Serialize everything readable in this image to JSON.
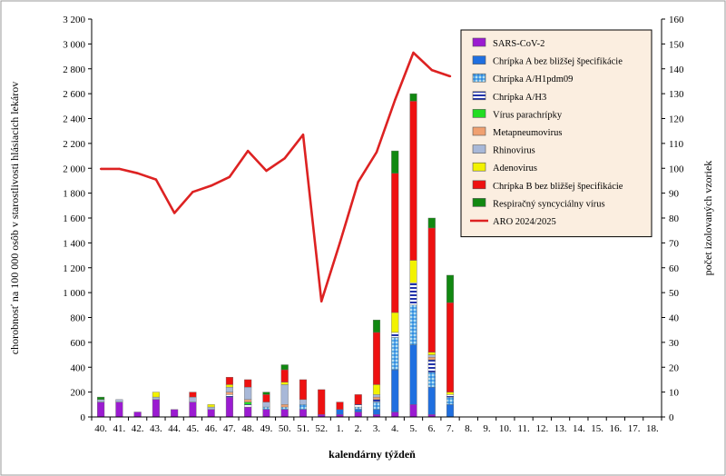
{
  "chart_data": {
    "type": "bar",
    "subtype": "stacked bar with line on secondary axis",
    "title": "",
    "xlabel": "kalendárny týždeň",
    "ylabel": "chorobnosť na 100 000 osôb v starostlivosti hlásiacich lekárov",
    "y2label": "počet izolovaných vzoriek",
    "ylim": [
      0,
      3200
    ],
    "y2lim": [
      0,
      160
    ],
    "yticks": [
      "0",
      "200",
      "400",
      "600",
      "800",
      "1 000",
      "1 200",
      "1 400",
      "1 600",
      "1 800",
      "2 000",
      "2 200",
      "2 400",
      "2 600",
      "2 800",
      "3 000",
      "3 200"
    ],
    "y2ticks": [
      "0",
      "10",
      "20",
      "30",
      "40",
      "50",
      "60",
      "70",
      "80",
      "90",
      "100",
      "110",
      "120",
      "130",
      "140",
      "150",
      "160"
    ],
    "categories": [
      "40.",
      "41.",
      "42.",
      "43.",
      "44.",
      "45.",
      "46.",
      "47.",
      "48.",
      "49.",
      "50.",
      "51.",
      "52.",
      "1.",
      "2.",
      "3.",
      "4.",
      "5.",
      "6.",
      "7.",
      "8.",
      "9.",
      "10.",
      "11.",
      "12.",
      "13.",
      "14.",
      "15.",
      "16.",
      "17.",
      "18."
    ],
    "legend_position": "top-right",
    "grid": false,
    "series": [
      {
        "name": "SARS-CoV-2",
        "axis": "y2",
        "color": "#9b1bd1",
        "pattern": "solid",
        "values": [
          6,
          6,
          2,
          7,
          3,
          6,
          3,
          8,
          4,
          3,
          3,
          3,
          1,
          1,
          2,
          1,
          2,
          5,
          1,
          0,
          0,
          0,
          0,
          0,
          0,
          0,
          0,
          0,
          0,
          0,
          0
        ]
      },
      {
        "name": "Chrípka A bez bližšej špecifikácie",
        "axis": "y2",
        "color": "#1f6fe0",
        "pattern": "solid",
        "values": [
          0,
          0,
          0,
          0,
          0,
          0,
          0,
          0,
          0,
          0,
          0,
          0,
          0,
          2,
          1,
          2,
          17,
          24,
          11,
          5,
          0,
          0,
          0,
          0,
          0,
          0,
          0,
          0,
          0,
          0,
          0
        ]
      },
      {
        "name": "Chrípka A/H1pdm09",
        "axis": "y2",
        "color": "#6fb8e8",
        "pattern": "dots",
        "values": [
          0,
          0,
          0,
          0,
          0,
          0,
          0,
          0,
          0,
          1,
          1,
          2,
          0,
          0,
          1,
          3,
          13,
          16,
          6,
          3,
          0,
          0,
          0,
          0,
          0,
          0,
          0,
          0,
          0,
          0,
          0
        ]
      },
      {
        "name": "Chrípka A/H3",
        "axis": "y2",
        "color": "#2233aa",
        "pattern": "stripes",
        "values": [
          0,
          0,
          0,
          0,
          0,
          0,
          0,
          1,
          1,
          0,
          0,
          0,
          0,
          0,
          1,
          1,
          2,
          9,
          5,
          1,
          0,
          0,
          0,
          0,
          0,
          0,
          0,
          0,
          0,
          0,
          0
        ]
      },
      {
        "name": "Vírus parachrípky",
        "axis": "y2",
        "color": "#22dd22",
        "pattern": "solid",
        "values": [
          0,
          0,
          0,
          0,
          0,
          0,
          0,
          0,
          1,
          0,
          0,
          0,
          0,
          0,
          0,
          0,
          0,
          0,
          0,
          0,
          0,
          0,
          0,
          0,
          0,
          0,
          0,
          0,
          0,
          0,
          0
        ]
      },
      {
        "name": "Metapneumovirus",
        "axis": "y2",
        "color": "#f0a070",
        "pattern": "solid",
        "values": [
          0,
          0,
          0,
          0,
          0,
          0,
          0,
          1,
          1,
          0,
          1,
          0,
          0,
          0,
          0,
          1,
          0,
          0,
          1,
          0,
          0,
          0,
          0,
          0,
          0,
          0,
          0,
          0,
          0,
          0,
          0
        ]
      },
      {
        "name": "Rhinovirus",
        "axis": "y2",
        "color": "#a8b8d8",
        "pattern": "solid",
        "values": [
          1,
          1,
          0,
          1,
          0,
          2,
          1,
          2,
          5,
          2,
          8,
          2,
          0,
          0,
          0,
          1,
          0,
          0,
          1,
          0,
          0,
          0,
          0,
          0,
          0,
          0,
          0,
          0,
          0,
          0,
          0
        ]
      },
      {
        "name": "Adenovirus",
        "axis": "y2",
        "color": "#f2f200",
        "pattern": "solid",
        "values": [
          0,
          0,
          0,
          2,
          0,
          0,
          1,
          1,
          0,
          0,
          1,
          0,
          0,
          0,
          0,
          4,
          8,
          9,
          1,
          1,
          0,
          0,
          0,
          0,
          0,
          0,
          0,
          0,
          0,
          0,
          0
        ]
      },
      {
        "name": "Chrípka B bez bližšej špecifikácie",
        "axis": "y2",
        "color": "#ee1111",
        "pattern": "solid",
        "values": [
          0,
          0,
          0,
          0,
          0,
          2,
          0,
          3,
          3,
          3,
          5,
          8,
          10,
          3,
          4,
          21,
          56,
          64,
          50,
          36,
          0,
          0,
          0,
          0,
          0,
          0,
          0,
          0,
          0,
          0,
          0
        ]
      },
      {
        "name": "Respiračný syncyciálny vírus",
        "axis": "y2",
        "color": "#118811",
        "pattern": "solid",
        "values": [
          1,
          0,
          0,
          0,
          0,
          0,
          0,
          0,
          0,
          1,
          2,
          0,
          0,
          0,
          0,
          5,
          9,
          3,
          4,
          11,
          0,
          0,
          0,
          0,
          0,
          0,
          0,
          0,
          0,
          0,
          0
        ]
      },
      {
        "name": "ARO 2024/2025",
        "axis": "y",
        "type": "line",
        "color": "#dd2222",
        "values": [
          1995,
          1995,
          1960,
          1910,
          1640,
          1810,
          1860,
          1930,
          2140,
          1980,
          2080,
          2270,
          930,
          1400,
          1890,
          2130,
          2550,
          2930,
          2790,
          2740,
          null,
          null,
          null,
          null,
          null,
          null,
          null,
          null,
          null,
          null,
          null
        ]
      }
    ]
  }
}
